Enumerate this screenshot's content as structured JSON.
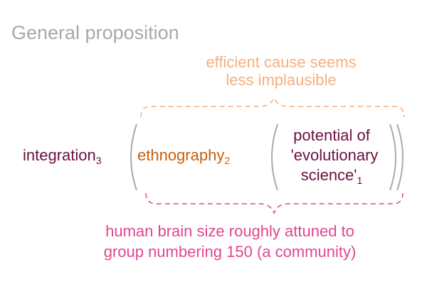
{
  "title": "General proposition",
  "top_annotation": {
    "lines": [
      "efficient cause seems",
      "less implausible"
    ]
  },
  "bottom_annotation": {
    "lines": [
      "human brain size roughly attuned to",
      "group numbering 150 (a community)"
    ]
  },
  "terms": {
    "integration": {
      "text": "integration",
      "sub": "3"
    },
    "ethnography": {
      "text": "ethnography",
      "sub": "2"
    },
    "potential": {
      "lines": [
        "potential of",
        "'evolutionary",
        "science'"
      ],
      "sub": "1"
    }
  },
  "colors": {
    "title": "#a8a8a8",
    "maroon": "#6b1040",
    "orange": "#c8600f",
    "pink": "#e0478f",
    "peach": "#f5b07e",
    "paren": "#aaaaaa"
  }
}
